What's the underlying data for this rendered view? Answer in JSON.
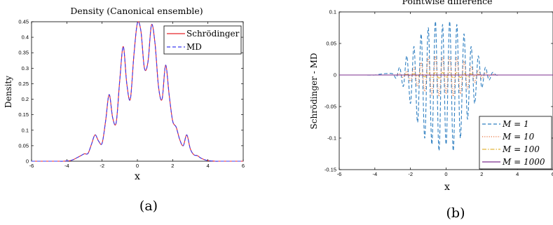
{
  "chart_data": [
    {
      "type": "line",
      "title": "Density (Canonical ensemble)",
      "xlabel": "x",
      "ylabel": "Density",
      "caption": "(a)",
      "xlim": [
        -6,
        6
      ],
      "ylim": [
        0,
        0.45
      ],
      "xticks": [
        "-6",
        "-4",
        "-2",
        "0",
        "2",
        "4",
        "6"
      ],
      "yticks": [
        "0",
        "0.05",
        "0.1",
        "0.15",
        "0.2",
        "0.25",
        "0.3",
        "0.35",
        "0.4",
        "0.45"
      ],
      "legend_position": "top-right",
      "x": [
        -6,
        -5.8,
        -5.6,
        -5.4,
        -5.2,
        -5,
        -4.8,
        -4.6,
        -4.4,
        -4.2,
        -4,
        -3.8,
        -3.6,
        -3.4,
        -3.2,
        -3,
        -2.8,
        -2.6,
        -2.4,
        -2.2,
        -2,
        -1.8,
        -1.6,
        -1.4,
        -1.2,
        -1,
        -0.8,
        -0.6,
        -0.4,
        -0.2,
        0,
        0.2,
        0.4,
        0.6,
        0.8,
        1,
        1.2,
        1.4,
        1.6,
        1.8,
        2,
        2.2,
        2.4,
        2.6,
        2.8,
        3,
        3.2,
        3.4,
        3.6,
        3.8,
        4,
        4.2,
        4.4,
        4.6,
        4.8,
        5,
        5.2,
        5.4,
        5.6,
        5.8,
        6
      ],
      "series": [
        {
          "name": "Schrödinger",
          "color": "#e8262a",
          "dash": "solid",
          "values": [
            0,
            0,
            0,
            0,
            0,
            0,
            0,
            0,
            0,
            0,
            0.001,
            0.002,
            0.006,
            0.012,
            0.018,
            0.024,
            0.025,
            0.055,
            0.085,
            0.065,
            0.058,
            0.13,
            0.215,
            0.14,
            0.125,
            0.26,
            0.37,
            0.25,
            0.2,
            0.34,
            0.445,
            0.42,
            0.3,
            0.32,
            0.44,
            0.38,
            0.24,
            0.2,
            0.31,
            0.215,
            0.13,
            0.11,
            0.07,
            0.05,
            0.085,
            0.04,
            0.021,
            0.018,
            0.01,
            0.005,
            0.002,
            0.001,
            0,
            0,
            0,
            0,
            0,
            0,
            0,
            0,
            0
          ]
        },
        {
          "name": "MD",
          "color": "#3b3bf0",
          "dash": "dashed",
          "values": [
            0,
            0,
            0,
            0,
            0,
            0,
            0,
            0,
            0,
            0,
            0.001,
            0.002,
            0.006,
            0.012,
            0.018,
            0.024,
            0.025,
            0.055,
            0.085,
            0.065,
            0.058,
            0.13,
            0.215,
            0.14,
            0.125,
            0.26,
            0.37,
            0.25,
            0.2,
            0.34,
            0.445,
            0.42,
            0.3,
            0.32,
            0.44,
            0.38,
            0.24,
            0.2,
            0.31,
            0.215,
            0.13,
            0.11,
            0.07,
            0.05,
            0.085,
            0.04,
            0.021,
            0.018,
            0.01,
            0.005,
            0.002,
            0.001,
            0,
            0,
            0,
            0,
            0,
            0,
            0,
            0,
            0
          ]
        }
      ]
    },
    {
      "type": "line",
      "title": "Pointwise difference",
      "xlabel": "x",
      "ylabel": "Schrödinger - MD",
      "caption": "(b)",
      "xlim": [
        -6,
        6
      ],
      "ylim": [
        -0.15,
        0.1
      ],
      "xticks": [
        "-6",
        "-4",
        "-2",
        "0",
        "2",
        "4",
        "6"
      ],
      "yticks": [
        "-0.15",
        "-0.1",
        "-0.05",
        "0",
        "0.05",
        "0.1"
      ],
      "legend_position": "bottom-right",
      "x": [
        -6,
        -5.5,
        -5,
        -4.5,
        -4,
        -3.5,
        -3,
        -2.8,
        -2.6,
        -2.4,
        -2.2,
        -2,
        -1.8,
        -1.6,
        -1.4,
        -1.2,
        -1,
        -0.8,
        -0.6,
        -0.4,
        -0.2,
        0,
        0.2,
        0.4,
        0.6,
        0.8,
        1,
        1.2,
        1.4,
        1.6,
        1.8,
        2,
        2.2,
        2.4,
        2.6,
        2.8,
        3,
        3.5,
        4,
        4.5,
        5,
        5.5,
        6
      ],
      "series": [
        {
          "name": "M = 1",
          "color": "#2f7fc1",
          "dash": "dashed",
          "values": [
            0,
            0,
            0,
            0,
            0,
            0.002,
            0.002,
            -0.005,
            0.012,
            -0.018,
            0.03,
            -0.045,
            0.045,
            -0.075,
            0.065,
            -0.1,
            0.075,
            -0.11,
            0.085,
            -0.12,
            0.08,
            -0.11,
            0.085,
            -0.12,
            0.08,
            -0.1,
            0.065,
            -0.07,
            0.045,
            -0.045,
            0.03,
            -0.02,
            0.012,
            -0.008,
            0.004,
            0,
            0,
            0,
            0,
            0,
            0,
            0,
            0
          ]
        },
        {
          "name": "M = 10",
          "color": "#e8713a",
          "dash": "dotted",
          "values": [
            0,
            0,
            0,
            0,
            0,
            0,
            0,
            0,
            0.002,
            -0.004,
            0.006,
            -0.01,
            0.012,
            -0.018,
            0.02,
            -0.026,
            0.028,
            -0.032,
            0.03,
            -0.034,
            0.028,
            -0.03,
            0.028,
            -0.034,
            0.028,
            -0.03,
            0.022,
            -0.022,
            0.014,
            -0.012,
            0.008,
            -0.006,
            0.004,
            -0.002,
            0.001,
            0,
            0,
            0,
            0,
            0,
            0,
            0,
            0
          ]
        },
        {
          "name": "M = 100",
          "color": "#e2b53a",
          "dash": "dashdot",
          "values": [
            0,
            0,
            0,
            0,
            0,
            0,
            0,
            0,
            0,
            0,
            0.001,
            -0.001,
            0.002,
            -0.002,
            0.003,
            -0.003,
            0.004,
            -0.004,
            0.004,
            -0.005,
            0.004,
            -0.004,
            0.004,
            -0.005,
            0.004,
            -0.004,
            0.003,
            -0.003,
            0.002,
            -0.002,
            0.001,
            -0.001,
            0,
            0,
            0,
            0,
            0,
            0,
            0,
            0,
            0,
            0,
            0
          ]
        },
        {
          "name": "M = 1000",
          "color": "#7b2d8e",
          "dash": "solid",
          "values": [
            0,
            0,
            0,
            0,
            0,
            0,
            0,
            0,
            0,
            0,
            0,
            0,
            0,
            0,
            0,
            0,
            0,
            0,
            0,
            0,
            0,
            0,
            0,
            0,
            0,
            0,
            0,
            0,
            0,
            0,
            0,
            0,
            0,
            0,
            0,
            0,
            0,
            0,
            0,
            0,
            0,
            0,
            0
          ]
        }
      ]
    }
  ]
}
